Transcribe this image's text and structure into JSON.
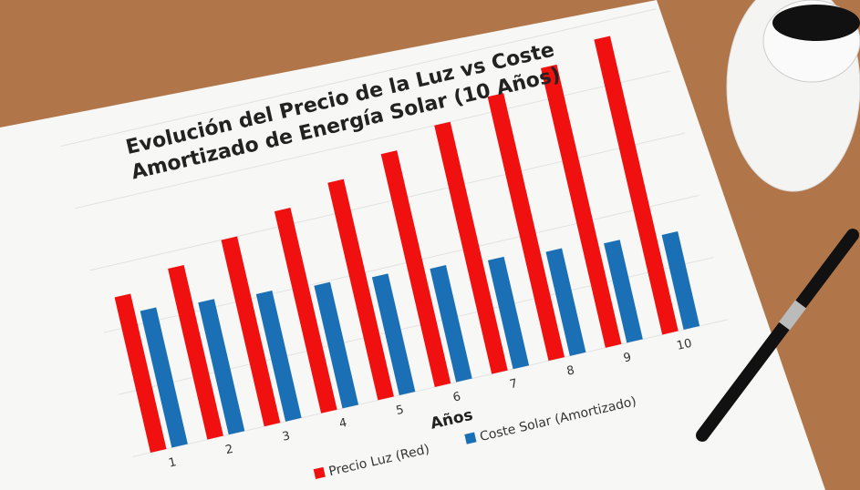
{
  "chart_data": {
    "type": "bar",
    "title": "Evolución del Precio de la Luz vs Coste Amortizado de Energía Solar (10 Años)",
    "title_lines": [
      "Evolución del Precio de la Luz vs Coste",
      "Amortizado de Energía Solar (10 Años)"
    ],
    "xlabel": "Años",
    "ylabel": "",
    "categories": [
      "1",
      "2",
      "3",
      "4",
      "5",
      "6",
      "7",
      "8",
      "9",
      "10"
    ],
    "series": [
      {
        "name": "Precio Luz (Red)",
        "color": "#f01010",
        "values": [
          100,
          110,
          120,
          130,
          140,
          150,
          160,
          170,
          180,
          190
        ]
      },
      {
        "name": "Coste Solar (Amortizado)",
        "color": "#1a6fb5",
        "values": [
          88,
          85,
          82,
          79,
          76,
          73,
          70,
          67,
          64,
          61
        ]
      }
    ],
    "grid": true,
    "legend": "bottom"
  }
}
